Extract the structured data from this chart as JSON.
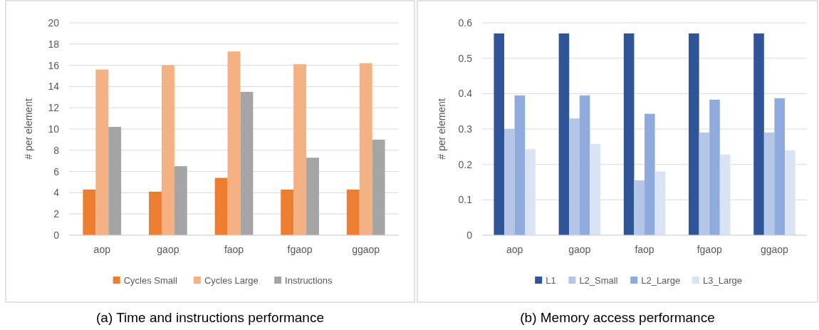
{
  "chart_data": [
    {
      "type": "bar",
      "categories": [
        "aop",
        "gaop",
        "faop",
        "fgaop",
        "ggaop"
      ],
      "ylabel": "# per element",
      "ylim": [
        0,
        20
      ],
      "yticks": [
        0,
        2,
        4,
        6,
        8,
        10,
        12,
        14,
        16,
        18,
        20
      ],
      "grid": "y",
      "legend": "bottom",
      "series": [
        {
          "name": "Cycles Small",
          "color": "#ed7d31",
          "values": [
            4.3,
            4.1,
            5.4,
            4.3,
            4.3
          ]
        },
        {
          "name": "Cycles Large",
          "color": "#f4b183",
          "values": [
            15.6,
            16.0,
            17.3,
            16.1,
            16.2
          ]
        },
        {
          "name": "Instructions",
          "color": "#a5a5a5",
          "values": [
            10.2,
            6.5,
            13.5,
            7.3,
            9.0
          ]
        }
      ],
      "annotations": [
        "(a) Time and instructions performance"
      ]
    },
    {
      "type": "bar",
      "categories": [
        "aop",
        "gaop",
        "faop",
        "fgaop",
        "ggaop"
      ],
      "ylabel": "# per element",
      "ylim": [
        0,
        0.6
      ],
      "yticks": [
        0,
        0.1,
        0.2,
        0.3,
        0.4,
        0.5,
        0.6
      ],
      "grid": "y",
      "legend": "bottom",
      "series": [
        {
          "name": "L1",
          "color": "#2f5597",
          "values": [
            0.57,
            0.57,
            0.57,
            0.57,
            0.57
          ]
        },
        {
          "name": "L2_Small",
          "color": "#b4c7e7",
          "values": [
            0.3,
            0.33,
            0.155,
            0.29,
            0.29
          ]
        },
        {
          "name": "L2_Large",
          "color": "#8faadc",
          "values": [
            0.395,
            0.395,
            0.343,
            0.383,
            0.387
          ]
        },
        {
          "name": "L3_Large",
          "color": "#dae3f3",
          "values": [
            0.243,
            0.258,
            0.18,
            0.228,
            0.24
          ]
        }
      ],
      "annotations": [
        "(b) Memory access performance"
      ]
    }
  ]
}
